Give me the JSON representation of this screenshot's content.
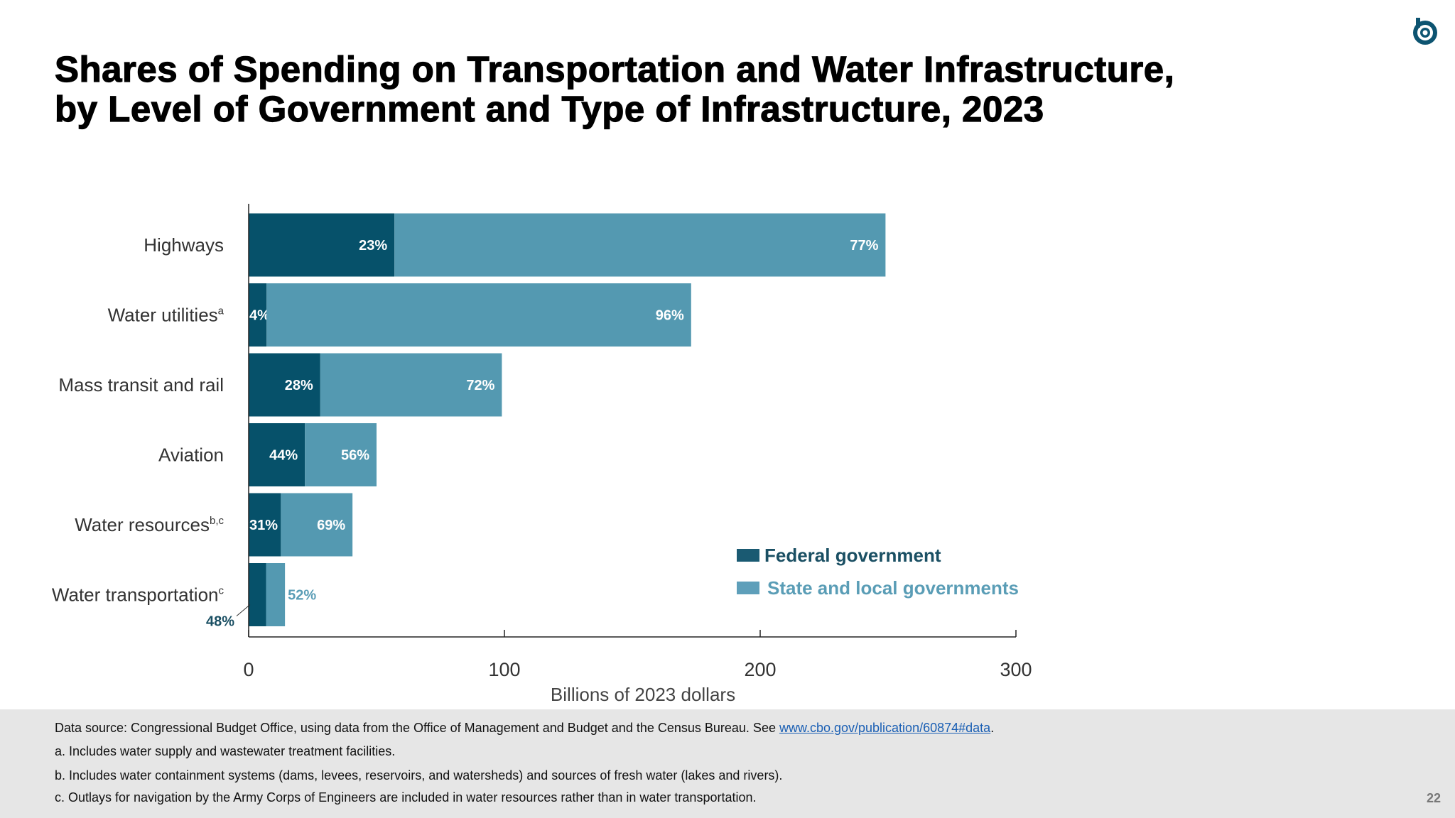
{
  "title": {
    "line1": "Shares of Spending on Transportation and Water Infrastructure,",
    "line2": "by Level of Government and Type of Infrastructure, 2023"
  },
  "logo": "cbo-logo-icon",
  "chart_data": {
    "type": "bar",
    "orientation": "horizontal",
    "stacked": true,
    "categories": [
      "Highways",
      "Water utilities",
      "Mass transit and rail",
      "Aviation",
      "Water resources",
      "Water transportation"
    ],
    "category_superscripts": [
      "",
      "a",
      "",
      "",
      "b,c",
      "c"
    ],
    "series": [
      {
        "name": "Federal government",
        "color": "#06516a",
        "values": [
          57,
          7,
          28,
          22,
          12.6,
          6.8
        ],
        "labels": [
          "23%",
          "4%",
          "28%",
          "44%",
          "31%",
          "48%"
        ]
      },
      {
        "name": "State and local governments",
        "color": "#5499b1",
        "values": [
          192,
          166,
          71,
          28,
          28,
          7.4
        ],
        "labels": [
          "77%",
          "96%",
          "72%",
          "56%",
          "69%",
          "52%"
        ]
      }
    ],
    "xlabel": "Billions of 2023 dollars",
    "xlim": [
      0,
      300
    ],
    "xticks": [
      "0",
      "100",
      "200",
      "300"
    ],
    "grid": false,
    "legend_position": "bottom-right"
  },
  "footer": {
    "source_prefix": "Data source: Congressional Budget Office, using data from the Office of Management and Budget and the Census Bureau. See ",
    "source_link": "www.cbo.gov/publication/60874#data",
    "source_suffix": ".",
    "note_a": "a. Includes water supply and wastewater treatment facilities.",
    "note_b": "b. Includes water containment systems (dams, levees, reservoirs, and watersheds) and sources of fresh water (lakes and rivers).",
    "note_c": "c. Outlays for navigation by the Army Corps of Engineers are included in water resources rather than in water transportation.",
    "page_number": "22"
  }
}
